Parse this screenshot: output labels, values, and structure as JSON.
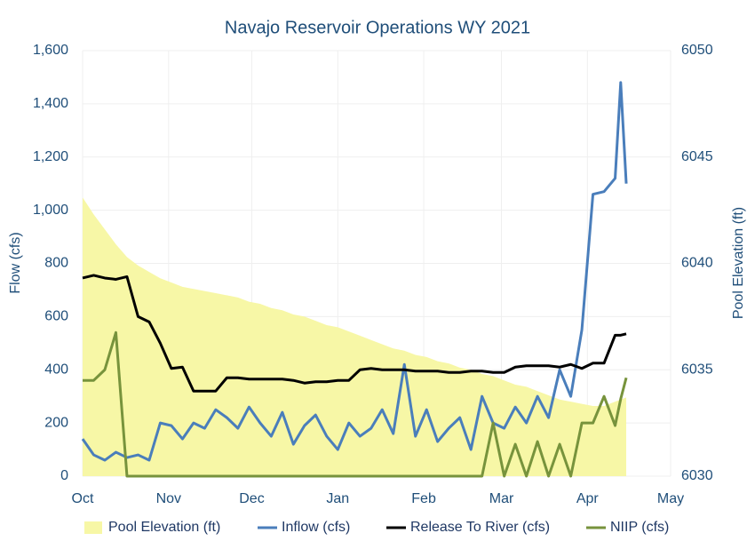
{
  "chart_data": {
    "type": "line",
    "title": "Navajo Reservoir Operations WY 2021",
    "y_label": "Flow (cfs)",
    "y2_label": "Pool Elevation (ft)",
    "x": [
      0,
      4,
      8,
      12,
      16,
      20,
      24,
      28,
      32,
      36,
      40,
      44,
      48,
      52,
      56,
      60,
      64,
      68,
      72,
      76,
      80,
      84,
      88,
      92,
      96,
      100,
      104,
      108,
      112,
      116,
      120,
      124,
      128,
      132,
      136,
      140,
      144,
      148,
      152,
      156,
      160,
      164,
      168,
      172,
      176,
      180,
      184,
      188,
      192,
      194,
      196
    ],
    "xlim": [
      0,
      212
    ],
    "xticks": [
      {
        "value": 0,
        "label": "Oct"
      },
      {
        "value": 31,
        "label": "Nov"
      },
      {
        "value": 61,
        "label": "Dec"
      },
      {
        "value": 92,
        "label": "Jan"
      },
      {
        "value": 123,
        "label": "Feb"
      },
      {
        "value": 151,
        "label": "Mar"
      },
      {
        "value": 182,
        "label": "Apr"
      },
      {
        "value": 212,
        "label": "May"
      }
    ],
    "ylim": [
      0,
      1600
    ],
    "yticks": [
      0,
      200,
      400,
      600,
      800,
      {
        "value": 1000,
        "label": "1,000"
      },
      {
        "value": 1200,
        "label": "1,200"
      },
      {
        "value": 1400,
        "label": "1,400"
      },
      {
        "value": 1600,
        "label": "1,600"
      }
    ],
    "y2lim": [
      6030,
      6050
    ],
    "y2ticks": [
      6030,
      6035,
      6040,
      6045,
      6050
    ],
    "grid": true,
    "legend": "bottom",
    "series": [
      {
        "name": "Pool Elevation (ft)",
        "type": "area",
        "axis": "y2",
        "color": "#f7f7a6",
        "values": [
          6043.1,
          6042.3,
          6041.6,
          6040.9,
          6040.3,
          6039.9,
          6039.6,
          6039.3,
          6039.1,
          6038.9,
          6038.8,
          6038.7,
          6038.6,
          6038.5,
          6038.4,
          6038.2,
          6038.1,
          6037.9,
          6037.8,
          6037.6,
          6037.5,
          6037.3,
          6037.1,
          6037.0,
          6036.8,
          6036.6,
          6036.4,
          6036.2,
          6036.0,
          6035.9,
          6035.7,
          6035.6,
          6035.4,
          6035.3,
          6035.1,
          6035.0,
          6034.8,
          6034.7,
          6034.5,
          6034.3,
          6034.2,
          6034.0,
          6033.8,
          6033.6,
          6033.5,
          6033.4,
          6033.3,
          6033.3,
          6033.5,
          6033.6,
          6033.7
        ]
      },
      {
        "name": "Inflow (cfs)",
        "type": "line",
        "color": "#4a7ebb",
        "values": [
          140,
          80,
          60,
          90,
          70,
          80,
          60,
          200,
          190,
          140,
          200,
          180,
          250,
          220,
          180,
          260,
          200,
          150,
          240,
          120,
          190,
          230,
          150,
          100,
          200,
          150,
          180,
          250,
          160,
          420,
          150,
          250,
          130,
          180,
          220,
          100,
          300,
          200,
          180,
          260,
          200,
          300,
          220,
          400,
          300,
          550,
          1060,
          1070,
          1120,
          1480,
          1100
        ]
      },
      {
        "name": "Release To River (cfs)",
        "type": "line",
        "color": "#000000",
        "values": [
          745,
          755,
          745,
          740,
          750,
          600,
          580,
          500,
          405,
          410,
          320,
          320,
          320,
          370,
          370,
          365,
          365,
          365,
          365,
          360,
          350,
          355,
          355,
          360,
          360,
          400,
          405,
          400,
          400,
          400,
          395,
          395,
          395,
          390,
          390,
          395,
          395,
          390,
          390,
          410,
          415,
          415,
          415,
          410,
          420,
          405,
          425,
          425,
          530,
          530,
          535
        ]
      },
      {
        "name": "NIIP (cfs)",
        "type": "line",
        "color": "#77933c",
        "values": [
          360,
          360,
          400,
          540,
          0,
          0,
          0,
          0,
          0,
          0,
          0,
          0,
          0,
          0,
          0,
          0,
          0,
          0,
          0,
          0,
          0,
          0,
          0,
          0,
          0,
          0,
          0,
          0,
          0,
          0,
          0,
          0,
          0,
          0,
          0,
          0,
          0,
          200,
          0,
          120,
          0,
          130,
          0,
          120,
          0,
          200,
          200,
          300,
          190,
          290,
          370
        ]
      }
    ]
  }
}
